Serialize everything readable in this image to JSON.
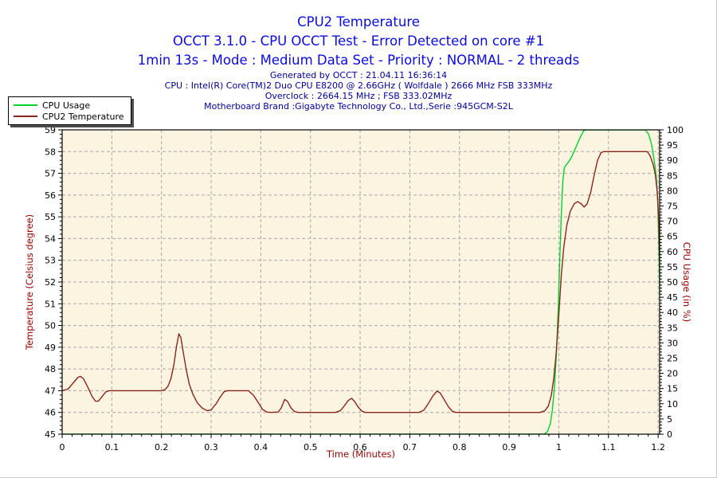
{
  "header": {
    "title": "CPU2 Temperature",
    "subtitle1": "OCCT 3.1.0 - CPU OCCT Test - Error Detected on core #1",
    "subtitle2": "1min 13s - Mode : Medium Data Set - Priority : NORMAL - 2 threads",
    "title_color": "#0b0be0",
    "info_color": "#000099",
    "info_lines": [
      "Generated by OCCT : 21.04.11 16:36:14",
      "CPU : Intel(R) Core(TM)2 Duo CPU E8200 @ 2.66GHz ( Wolfdale ) 2666 MHz FSB 333MHz",
      "Overclock : 2664.15 MHz ; FSB 333.02MHz",
      "Motherboard Brand :Gigabyte Technology Co., Ltd.,Serie :945GCM-S2L"
    ]
  },
  "legend": {
    "items": [
      {
        "label": "CPU Usage",
        "color": "#00d22c"
      },
      {
        "label": "CPU2 Temperature",
        "color": "#8c241e"
      }
    ]
  },
  "chart_data": {
    "type": "line",
    "title": "CPU2 Temperature",
    "xlabel": "Time (Minutes)",
    "ylabel_left": "Temperature (Celsius degree)",
    "ylabel_right": "CPU Usage (in %)",
    "axis_title_color": "#990000",
    "tick_label_color": "#000000",
    "plot_bg": "#fbf4e0",
    "grid_color": "#a8a8a8",
    "grid": true,
    "legend_position": "top-left",
    "xlim": [
      0,
      1.203
    ],
    "ylim_left": [
      45,
      59
    ],
    "ylim_right": [
      0,
      100
    ],
    "x_major": 0.1,
    "x_minor": 0.02,
    "yl_major": 1,
    "yl_minor": 0.2,
    "yr_major": 5,
    "yr_minor": 1,
    "series": [
      {
        "name": "CPU Usage",
        "axis": "right",
        "color": "#00d22c",
        "points": [
          [
            0,
            0
          ],
          [
            0.3,
            0
          ],
          [
            0.6,
            0
          ],
          [
            0.9,
            0
          ],
          [
            0.97,
            0
          ],
          [
            0.977,
            0.8
          ],
          [
            0.983,
            3.5
          ],
          [
            0.987,
            8
          ],
          [
            0.991,
            15
          ],
          [
            0.995,
            26
          ],
          [
            0.999,
            42
          ],
          [
            1.002,
            58
          ],
          [
            1.005,
            72
          ],
          [
            1.008,
            83
          ],
          [
            1.011,
            87.5
          ],
          [
            1.015,
            88.5
          ],
          [
            1.02,
            89.5
          ],
          [
            1.027,
            91.5
          ],
          [
            1.035,
            94.5
          ],
          [
            1.043,
            97.5
          ],
          [
            1.05,
            99.7
          ],
          [
            1.055,
            100
          ],
          [
            1.1,
            100
          ],
          [
            1.15,
            100
          ],
          [
            1.174,
            100
          ],
          [
            1.181,
            98.5
          ],
          [
            1.187,
            95
          ],
          [
            1.192,
            90
          ],
          [
            1.196,
            85
          ],
          [
            1.199,
            77
          ],
          [
            1.201,
            65
          ],
          [
            1.2025,
            53
          ],
          [
            1.2035,
            42
          ]
        ]
      },
      {
        "name": "CPU2 Temperature",
        "axis": "left",
        "color": "#8c241e",
        "points": [
          [
            0,
            47
          ],
          [
            0.012,
            47.08
          ],
          [
            0.022,
            47.35
          ],
          [
            0.032,
            47.62
          ],
          [
            0.037,
            47.66
          ],
          [
            0.043,
            47.55
          ],
          [
            0.052,
            47.15
          ],
          [
            0.06,
            46.75
          ],
          [
            0.067,
            46.52
          ],
          [
            0.073,
            46.52
          ],
          [
            0.08,
            46.72
          ],
          [
            0.088,
            46.95
          ],
          [
            0.095,
            47
          ],
          [
            0.12,
            47
          ],
          [
            0.16,
            47
          ],
          [
            0.2,
            47
          ],
          [
            0.207,
            47.05
          ],
          [
            0.213,
            47.2
          ],
          [
            0.219,
            47.55
          ],
          [
            0.225,
            48.2
          ],
          [
            0.23,
            49
          ],
          [
            0.235,
            49.62
          ],
          [
            0.239,
            49.45
          ],
          [
            0.244,
            48.75
          ],
          [
            0.25,
            47.95
          ],
          [
            0.256,
            47.3
          ],
          [
            0.263,
            46.85
          ],
          [
            0.272,
            46.45
          ],
          [
            0.282,
            46.2
          ],
          [
            0.292,
            46.08
          ],
          [
            0.3,
            46.12
          ],
          [
            0.31,
            46.4
          ],
          [
            0.318,
            46.7
          ],
          [
            0.326,
            46.95
          ],
          [
            0.332,
            47
          ],
          [
            0.35,
            47
          ],
          [
            0.375,
            47
          ],
          [
            0.385,
            46.8
          ],
          [
            0.395,
            46.45
          ],
          [
            0.403,
            46.15
          ],
          [
            0.412,
            46.02
          ],
          [
            0.42,
            46
          ],
          [
            0.435,
            46.02
          ],
          [
            0.441,
            46.2
          ],
          [
            0.448,
            46.6
          ],
          [
            0.454,
            46.5
          ],
          [
            0.461,
            46.2
          ],
          [
            0.468,
            46.04
          ],
          [
            0.475,
            46
          ],
          [
            0.51,
            46
          ],
          [
            0.55,
            46
          ],
          [
            0.56,
            46.08
          ],
          [
            0.568,
            46.3
          ],
          [
            0.576,
            46.55
          ],
          [
            0.583,
            46.65
          ],
          [
            0.589,
            46.5
          ],
          [
            0.596,
            46.25
          ],
          [
            0.603,
            46.07
          ],
          [
            0.61,
            46
          ],
          [
            0.65,
            46
          ],
          [
            0.7,
            46
          ],
          [
            0.718,
            46
          ],
          [
            0.728,
            46.1
          ],
          [
            0.737,
            46.4
          ],
          [
            0.747,
            46.78
          ],
          [
            0.755,
            46.98
          ],
          [
            0.761,
            46.9
          ],
          [
            0.769,
            46.6
          ],
          [
            0.778,
            46.25
          ],
          [
            0.786,
            46.05
          ],
          [
            0.793,
            46
          ],
          [
            0.85,
            46
          ],
          [
            0.92,
            46
          ],
          [
            0.962,
            46
          ],
          [
            0.972,
            46.08
          ],
          [
            0.979,
            46.3
          ],
          [
            0.985,
            46.8
          ],
          [
            0.99,
            47.6
          ],
          [
            0.995,
            48.8
          ],
          [
            1,
            50.5
          ],
          [
            1.005,
            52.3
          ],
          [
            1.01,
            53.6
          ],
          [
            1.016,
            54.6
          ],
          [
            1.023,
            55.25
          ],
          [
            1.031,
            55.6
          ],
          [
            1.038,
            55.7
          ],
          [
            1.045,
            55.6
          ],
          [
            1.051,
            55.45
          ],
          [
            1.057,
            55.6
          ],
          [
            1.064,
            56.1
          ],
          [
            1.071,
            56.9
          ],
          [
            1.078,
            57.6
          ],
          [
            1.085,
            57.95
          ],
          [
            1.09,
            58
          ],
          [
            1.12,
            58
          ],
          [
            1.16,
            58
          ],
          [
            1.178,
            58
          ],
          [
            1.184,
            57.8
          ],
          [
            1.19,
            57.4
          ],
          [
            1.194,
            57
          ],
          [
            1.198,
            56.2
          ],
          [
            1.2,
            55.4
          ],
          [
            1.2015,
            54.5
          ],
          [
            1.2025,
            53.5
          ],
          [
            1.2035,
            52.6
          ]
        ]
      }
    ]
  }
}
